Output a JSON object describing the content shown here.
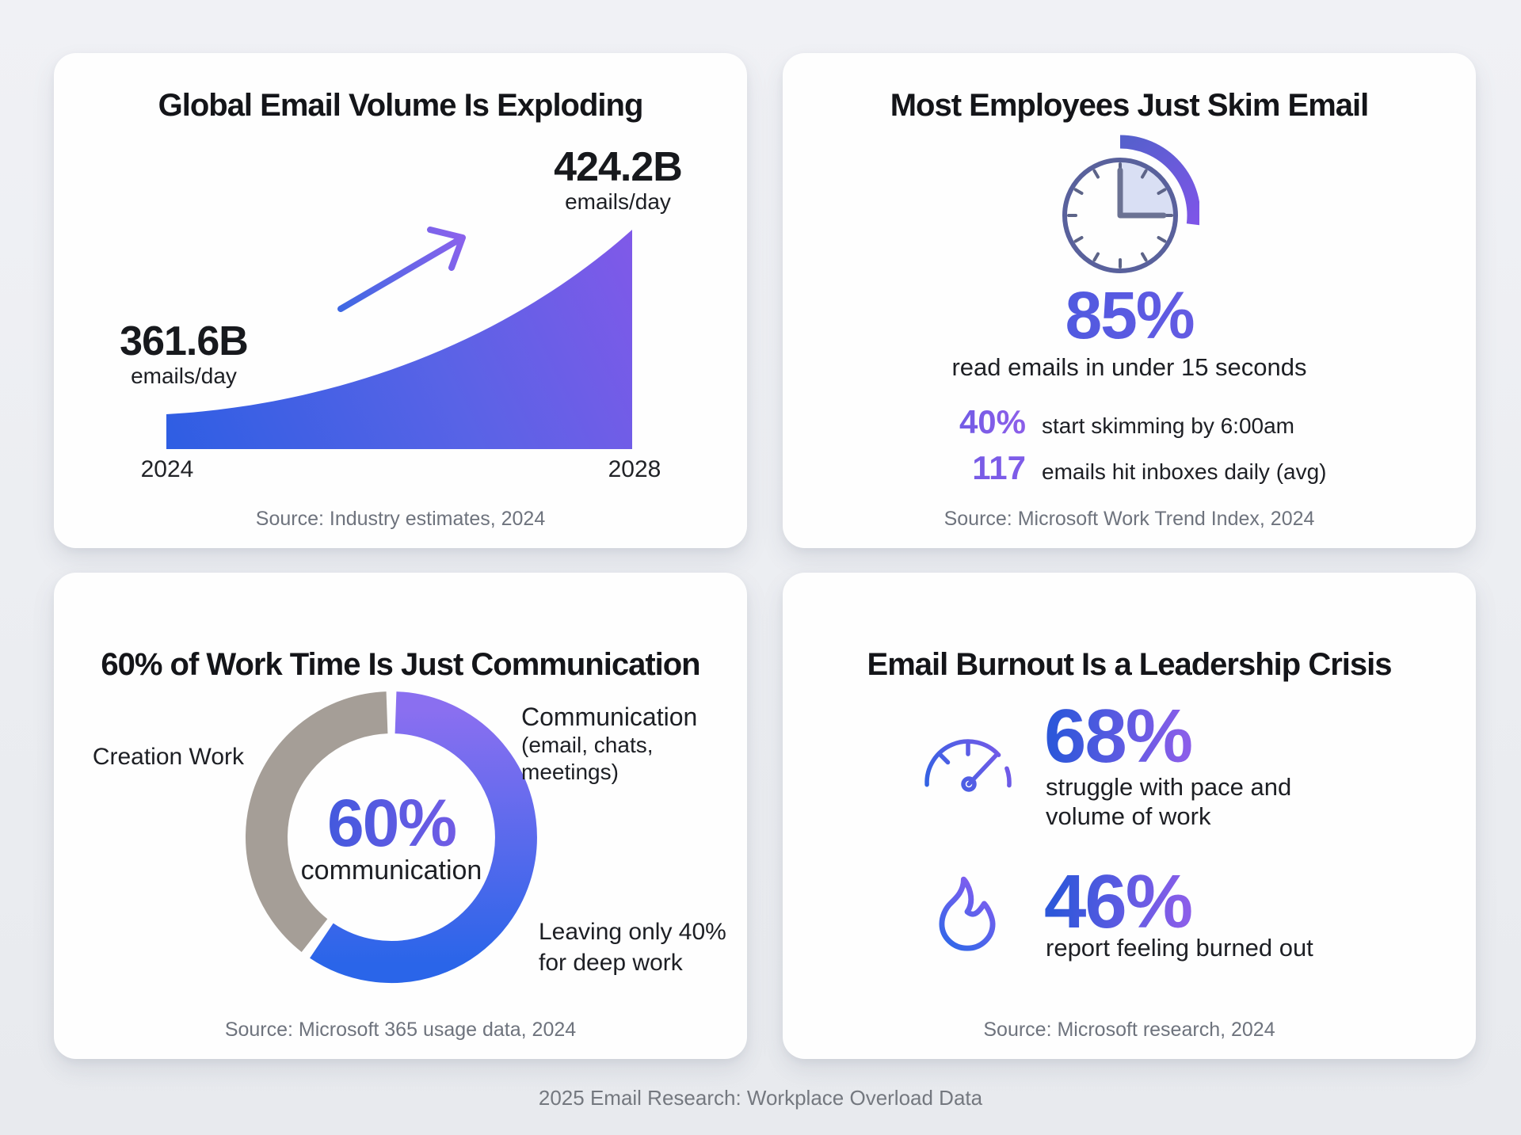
{
  "page": {
    "footer": "2025 Email Research: Workplace Overload Data"
  },
  "colors": {
    "accent_blue": "#2d57da",
    "accent_purple": "#8a5ee9",
    "donut_gray": "#a59e97",
    "text_dark": "#17191d",
    "muted_gray": "#6e737d",
    "card_bg": "#fefefe",
    "page_bg": "#edeff3"
  },
  "icons": [
    "growth-arrow-icon",
    "clock-icon",
    "gauge-icon",
    "flame-icon"
  ],
  "cards": {
    "email_volume": {
      "title": "Global Email Volume Is Exploding",
      "start": {
        "value": "361.6B",
        "unit": "emails/day",
        "year": "2024"
      },
      "end": {
        "value": "424.2B",
        "unit": "emails/day",
        "year": "2028"
      },
      "source": "Source: Industry estimates, 2024"
    },
    "skim": {
      "title": "Most Employees Just Skim Email",
      "headline_value": "85%",
      "headline_label": "read emails in under 15 seconds",
      "stats": [
        {
          "value": "40%",
          "label": "start skimming by 6:00am"
        },
        {
          "value": "117",
          "label": "emails hit inboxes daily (avg)"
        }
      ],
      "source": "Source: Microsoft Work Trend Index, 2024"
    },
    "communication": {
      "title": "60% of Work Time Is Just Communication",
      "center_value": "60%",
      "center_label": "communication",
      "left_segment_label": "Creation Work",
      "right_segment_label": "Communication",
      "right_segment_sublabel": "(email, chats, meetings)",
      "note": "Leaving only 40%\nfor deep work",
      "source": "Source: Microsoft 365 usage data, 2024"
    },
    "burnout": {
      "title": "Email Burnout Is a Leadership Crisis",
      "stats": [
        {
          "value": "68%",
          "label": "struggle with pace and\nvolume of work"
        },
        {
          "value": "46%",
          "label": "report feeling burned out"
        }
      ],
      "source": "Source: Microsoft research, 2024"
    }
  },
  "chart_data": [
    {
      "type": "area",
      "title": "Global Email Volume Is Exploding",
      "x": [
        "2024",
        "2028"
      ],
      "series": [
        {
          "name": "Global email volume",
          "values": [
            361.6,
            424.2
          ]
        }
      ],
      "unit": "emails/day (billions)",
      "annotations": [
        "361.6B emails/day",
        "424.2B emails/day"
      ],
      "trend": "up",
      "grid": false,
      "source": "Source: Industry estimates, 2024"
    },
    {
      "type": "pie",
      "title": "60% of Work Time Is Just Communication",
      "categories": [
        "Communication (email, chats, meetings)",
        "Creation Work"
      ],
      "values": [
        60,
        40
      ],
      "colors": [
        "#5b6ae9",
        "#a59e97"
      ],
      "center_label": "60% communication",
      "note": "Leaving only 40% for deep work",
      "legend_position": "sides",
      "source": "Source: Microsoft 365 usage data, 2024"
    }
  ]
}
